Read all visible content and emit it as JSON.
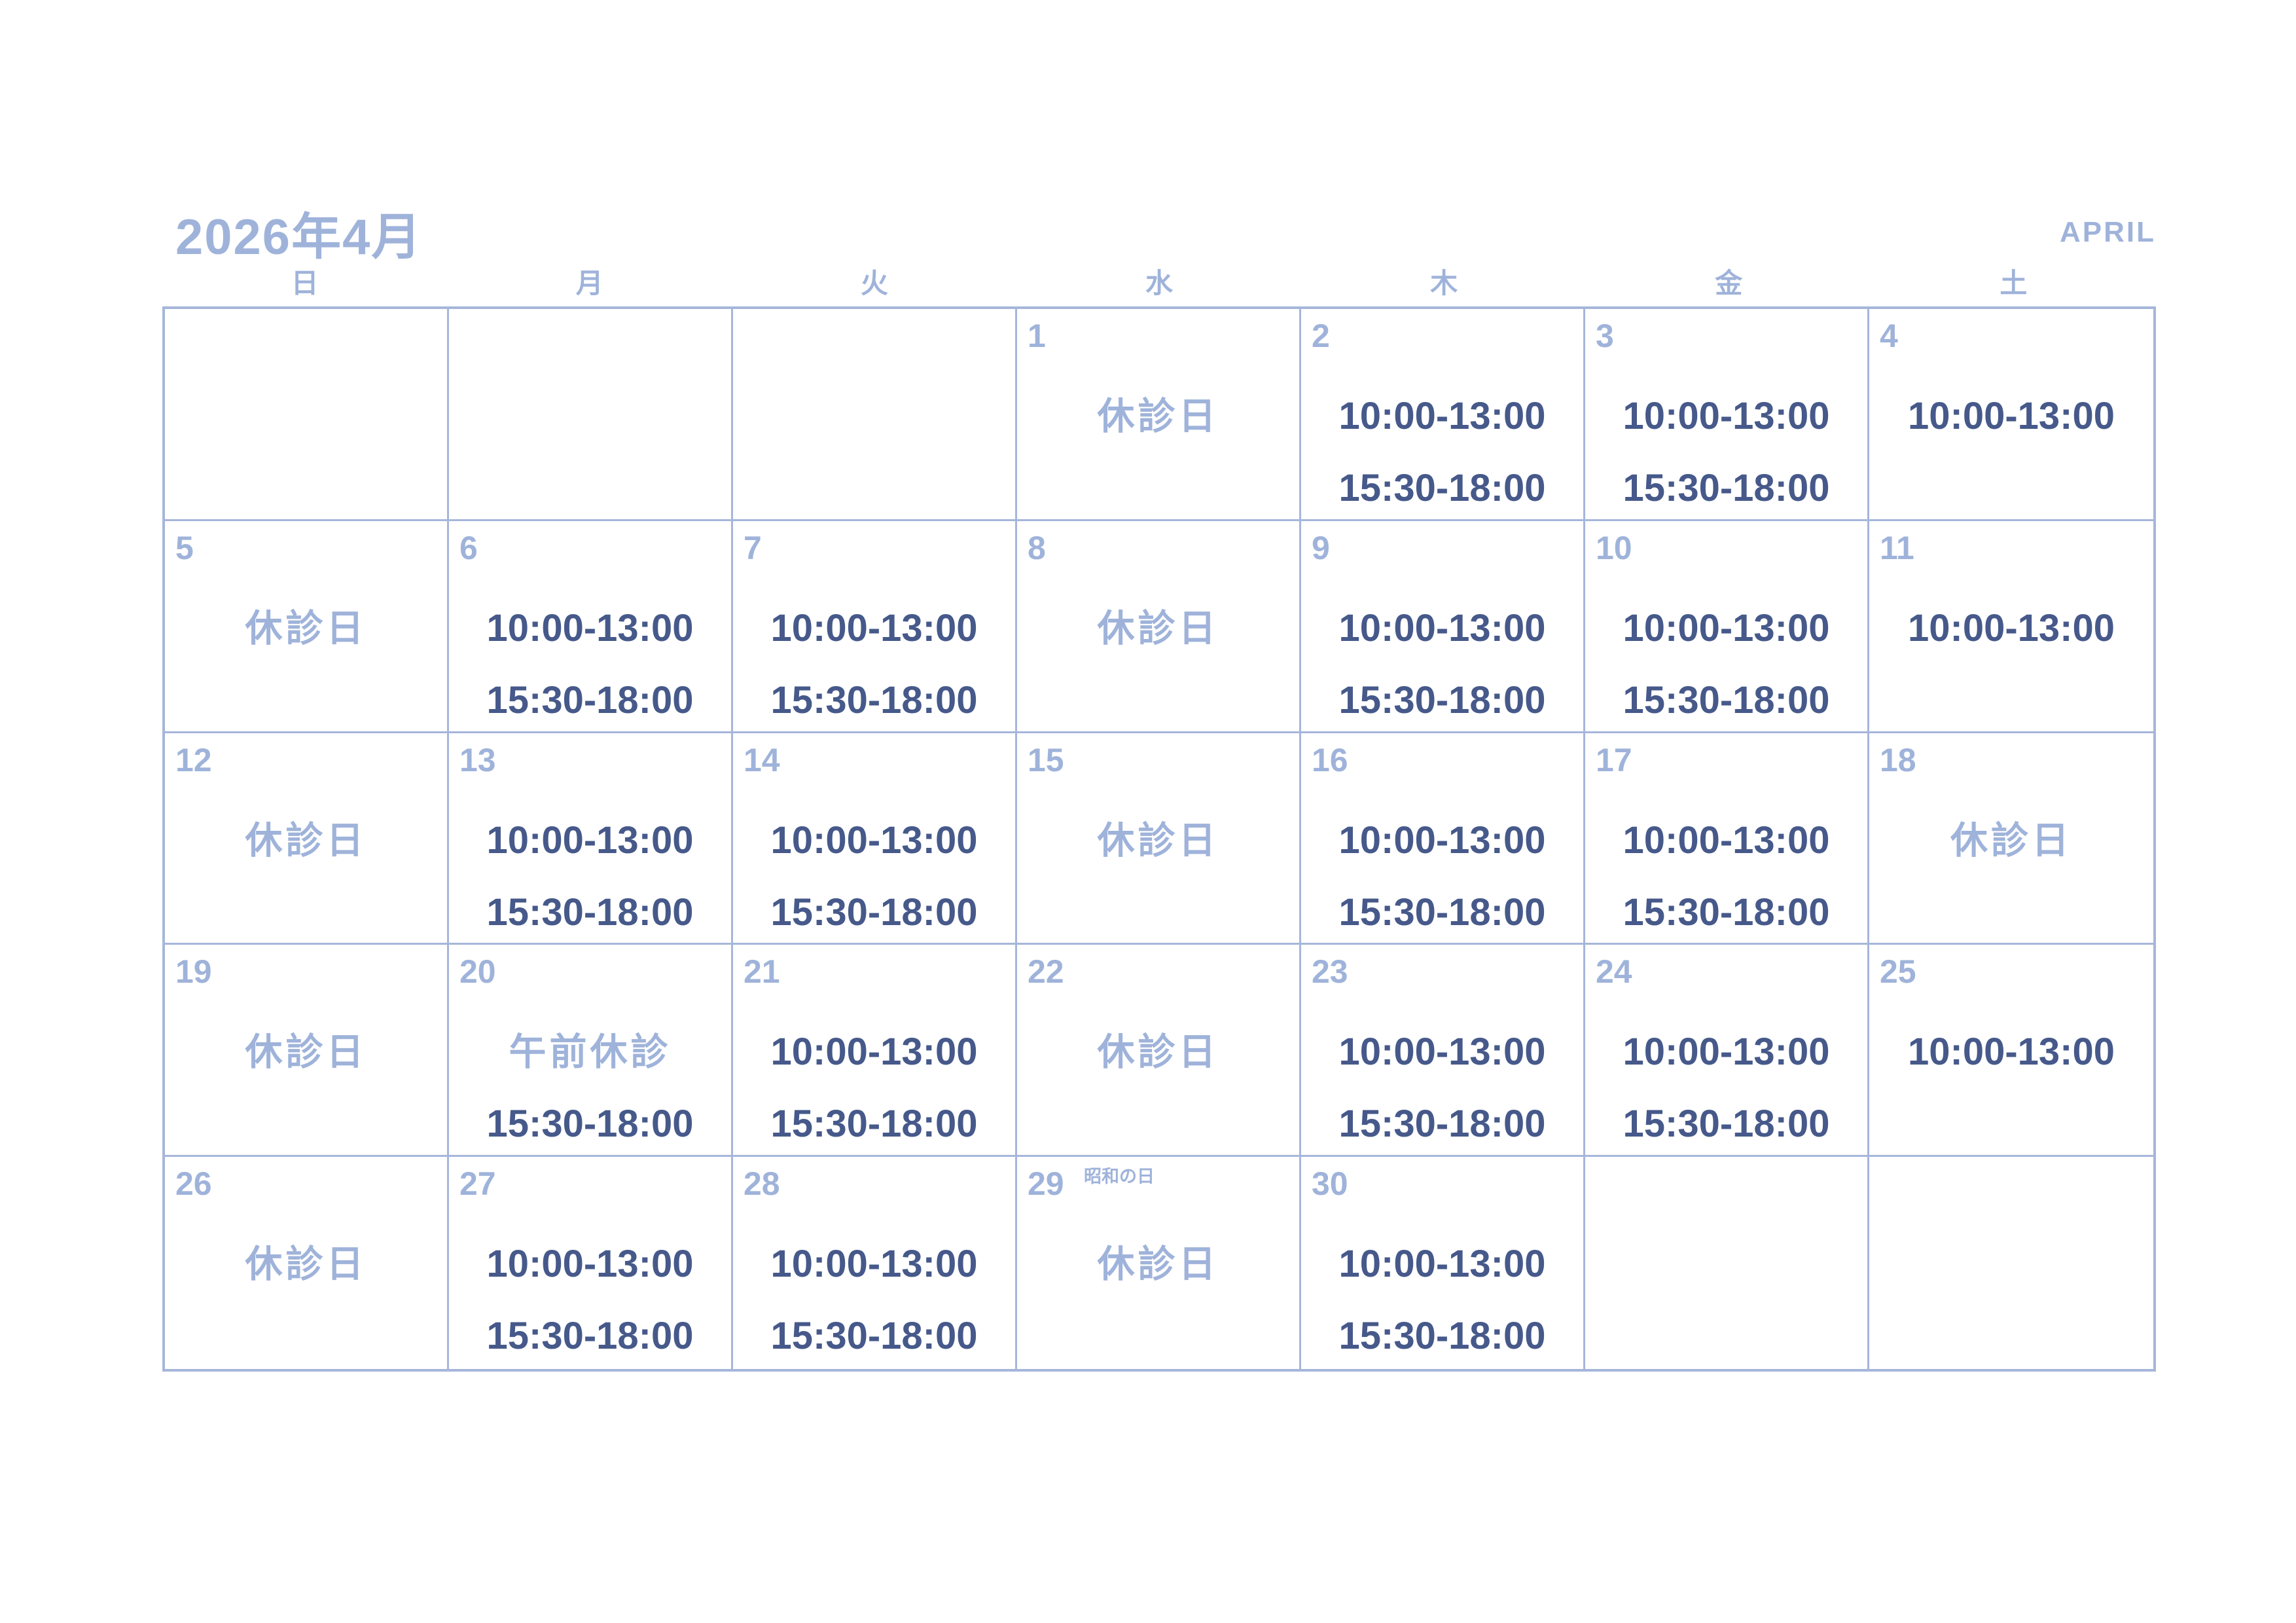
{
  "page": {
    "title": "2026年4月",
    "month_en": "APRIL"
  },
  "colors": {
    "light_blue": "#9FB3DA",
    "dark_blue": "#46598A",
    "border": "#A6B6DB",
    "background": "#FFFFFF"
  },
  "weekdays": [
    "日",
    "月",
    "火",
    "水",
    "木",
    "金",
    "土"
  ],
  "weeks": [
    [
      {
        "day": "",
        "note": "",
        "l1": "",
        "l1c": "",
        "l2": ""
      },
      {
        "day": "",
        "note": "",
        "l1": "",
        "l1c": "",
        "l2": ""
      },
      {
        "day": "",
        "note": "",
        "l1": "",
        "l1c": "",
        "l2": ""
      },
      {
        "day": "1",
        "note": "",
        "l1": "休診日",
        "l1c": "closed",
        "l2": ""
      },
      {
        "day": "2",
        "note": "",
        "l1": "10:00-13:00",
        "l1c": "time",
        "l2": "15:30-18:00"
      },
      {
        "day": "3",
        "note": "",
        "l1": "10:00-13:00",
        "l1c": "time",
        "l2": "15:30-18:00"
      },
      {
        "day": "4",
        "note": "",
        "l1": "10:00-13:00",
        "l1c": "time",
        "l2": ""
      }
    ],
    [
      {
        "day": "5",
        "note": "",
        "l1": "休診日",
        "l1c": "closed",
        "l2": ""
      },
      {
        "day": "6",
        "note": "",
        "l1": "10:00-13:00",
        "l1c": "time",
        "l2": "15:30-18:00"
      },
      {
        "day": "7",
        "note": "",
        "l1": "10:00-13:00",
        "l1c": "time",
        "l2": "15:30-18:00"
      },
      {
        "day": "8",
        "note": "",
        "l1": "休診日",
        "l1c": "closed",
        "l2": ""
      },
      {
        "day": "9",
        "note": "",
        "l1": "10:00-13:00",
        "l1c": "time",
        "l2": "15:30-18:00"
      },
      {
        "day": "10",
        "note": "",
        "l1": "10:00-13:00",
        "l1c": "time",
        "l2": "15:30-18:00"
      },
      {
        "day": "11",
        "note": "",
        "l1": "10:00-13:00",
        "l1c": "time",
        "l2": ""
      }
    ],
    [
      {
        "day": "12",
        "note": "",
        "l1": "休診日",
        "l1c": "closed",
        "l2": ""
      },
      {
        "day": "13",
        "note": "",
        "l1": "10:00-13:00",
        "l1c": "time",
        "l2": "15:30-18:00"
      },
      {
        "day": "14",
        "note": "",
        "l1": "10:00-13:00",
        "l1c": "time",
        "l2": "15:30-18:00"
      },
      {
        "day": "15",
        "note": "",
        "l1": "休診日",
        "l1c": "closed",
        "l2": ""
      },
      {
        "day": "16",
        "note": "",
        "l1": "10:00-13:00",
        "l1c": "time",
        "l2": "15:30-18:00"
      },
      {
        "day": "17",
        "note": "",
        "l1": "10:00-13:00",
        "l1c": "time",
        "l2": "15:30-18:00"
      },
      {
        "day": "18",
        "note": "",
        "l1": "休診日",
        "l1c": "closed",
        "l2": ""
      }
    ],
    [
      {
        "day": "19",
        "note": "",
        "l1": "休診日",
        "l1c": "closed",
        "l2": ""
      },
      {
        "day": "20",
        "note": "",
        "l1": "午前休診",
        "l1c": "closed",
        "l2": "15:30-18:00"
      },
      {
        "day": "21",
        "note": "",
        "l1": "10:00-13:00",
        "l1c": "time",
        "l2": "15:30-18:00"
      },
      {
        "day": "22",
        "note": "",
        "l1": "休診日",
        "l1c": "closed",
        "l2": ""
      },
      {
        "day": "23",
        "note": "",
        "l1": "10:00-13:00",
        "l1c": "time",
        "l2": "15:30-18:00"
      },
      {
        "day": "24",
        "note": "",
        "l1": "10:00-13:00",
        "l1c": "time",
        "l2": "15:30-18:00"
      },
      {
        "day": "25",
        "note": "",
        "l1": "10:00-13:00",
        "l1c": "time",
        "l2": ""
      }
    ],
    [
      {
        "day": "26",
        "note": "",
        "l1": "休診日",
        "l1c": "closed",
        "l2": ""
      },
      {
        "day": "27",
        "note": "",
        "l1": "10:00-13:00",
        "l1c": "time",
        "l2": "15:30-18:00"
      },
      {
        "day": "28",
        "note": "",
        "l1": "10:00-13:00",
        "l1c": "time",
        "l2": "15:30-18:00"
      },
      {
        "day": "29",
        "note": "昭和の日",
        "l1": "休診日",
        "l1c": "closed",
        "l2": ""
      },
      {
        "day": "30",
        "note": "",
        "l1": "10:00-13:00",
        "l1c": "time",
        "l2": "15:30-18:00"
      },
      {
        "day": "",
        "note": "",
        "l1": "",
        "l1c": "",
        "l2": ""
      },
      {
        "day": "",
        "note": "",
        "l1": "",
        "l1c": "",
        "l2": ""
      }
    ]
  ]
}
